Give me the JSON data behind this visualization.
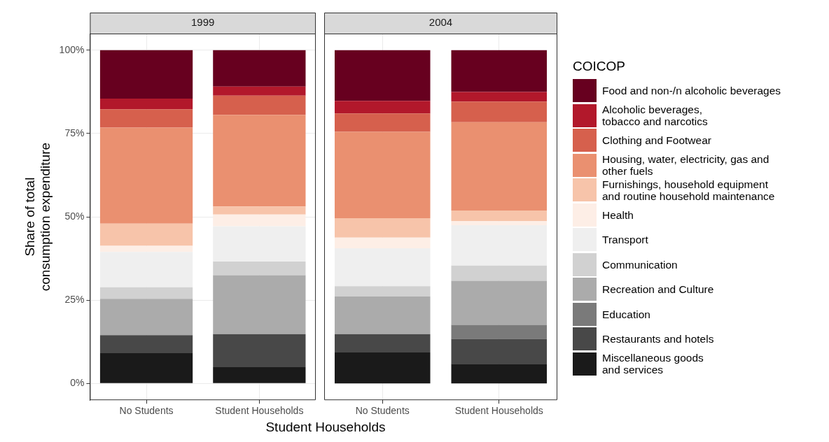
{
  "chart_data": [
    {
      "type": "bar",
      "title": "1999",
      "xlabel": "Student Households",
      "ylabel": "Share of total\nconsumption expenditure",
      "categories": [
        "No Students",
        "Student Households"
      ],
      "stacked": true,
      "grid": true,
      "ylim": [
        -5,
        105
      ],
      "yticks": [
        {
          "value": 0,
          "label": "0%"
        },
        {
          "value": 25,
          "label": "25%"
        },
        {
          "value": 50,
          "label": "50%"
        },
        {
          "value": 75,
          "label": "75%"
        },
        {
          "value": 100,
          "label": "100%"
        }
      ],
      "series": [
        {
          "color": "#1a1a1a",
          "values": [
            9.1,
            4.9
          ]
        },
        {
          "color": "#484848",
          "values": [
            5.4,
            9.9
          ]
        },
        {
          "color": "#7a7a7a",
          "values": [
            0,
            0
          ]
        },
        {
          "color": "#ababab",
          "values": [
            10.9,
            17.7
          ]
        },
        {
          "color": "#d1d1d1",
          "values": [
            3.5,
            4.1
          ]
        },
        {
          "color": "#efefef",
          "values": [
            10.6,
            10.6
          ]
        },
        {
          "color": "#fdeee6",
          "values": [
            1.8,
            3.5
          ]
        },
        {
          "color": "#f7c4aa",
          "values": [
            6.7,
            2.4
          ]
        },
        {
          "color": "#ea9070",
          "values": [
            28.8,
            27.5
          ]
        },
        {
          "color": "#d6604d",
          "values": [
            5.5,
            5.8
          ]
        },
        {
          "color": "#b2182b",
          "values": [
            3.2,
            2.7
          ]
        },
        {
          "color": "#67001f",
          "values": [
            14.5,
            10.9
          ]
        }
      ]
    },
    {
      "type": "bar",
      "title": "2004",
      "legend_title": "COICOP",
      "categories": [
        "No Students",
        "Student Households"
      ],
      "stacked": true,
      "grid": true,
      "legend": "right",
      "tick_labels": "x",
      "ylim": [
        -5,
        105
      ],
      "yticks": [
        {
          "value": 0,
          "label": null
        },
        {
          "value": 25,
          "label": null
        },
        {
          "value": 50,
          "label": null
        },
        {
          "value": 75,
          "label": null
        },
        {
          "value": 100,
          "label": null
        }
      ],
      "series": [
        {
          "name": "Miscellaneous goods\nand services",
          "color": "#1a1a1a",
          "values": [
            9.3,
            5.9
          ]
        },
        {
          "name": "Restaurants and hotels",
          "color": "#484848",
          "values": [
            5.5,
            7.5
          ]
        },
        {
          "name": "Education",
          "color": "#7a7a7a",
          "values": [
            0,
            4.2
          ]
        },
        {
          "name": "Recreation and Culture",
          "color": "#ababab",
          "values": [
            11.3,
            13.2
          ]
        },
        {
          "name": "Communication",
          "color": "#d1d1d1",
          "values": [
            3.1,
            4.6
          ]
        },
        {
          "name": "Transport",
          "color": "#efefef",
          "values": [
            11.4,
            12.1
          ]
        },
        {
          "name": "Health",
          "color": "#fdeee6",
          "values": [
            3.2,
            1.2
          ]
        },
        {
          "name": "Furnishings, household equipment\nand routine household maintenance",
          "color": "#f7c4aa",
          "values": [
            5.8,
            3.2
          ]
        },
        {
          "name": "Housing, water, electricity, gas and\nother fuels",
          "color": "#ea9070",
          "values": [
            25.9,
            26.5
          ]
        },
        {
          "name": "Clothing and Footwear",
          "color": "#d6604d",
          "values": [
            5.5,
            6.2
          ]
        },
        {
          "name": "Alcoholic beverages,\ntobacco and narcotics",
          "color": "#b2182b",
          "values": [
            3.8,
            2.9
          ]
        },
        {
          "name": "Food and non-/n alcoholic beverages",
          "color": "#67001f",
          "values": [
            15.2,
            12.5
          ]
        }
      ]
    }
  ]
}
